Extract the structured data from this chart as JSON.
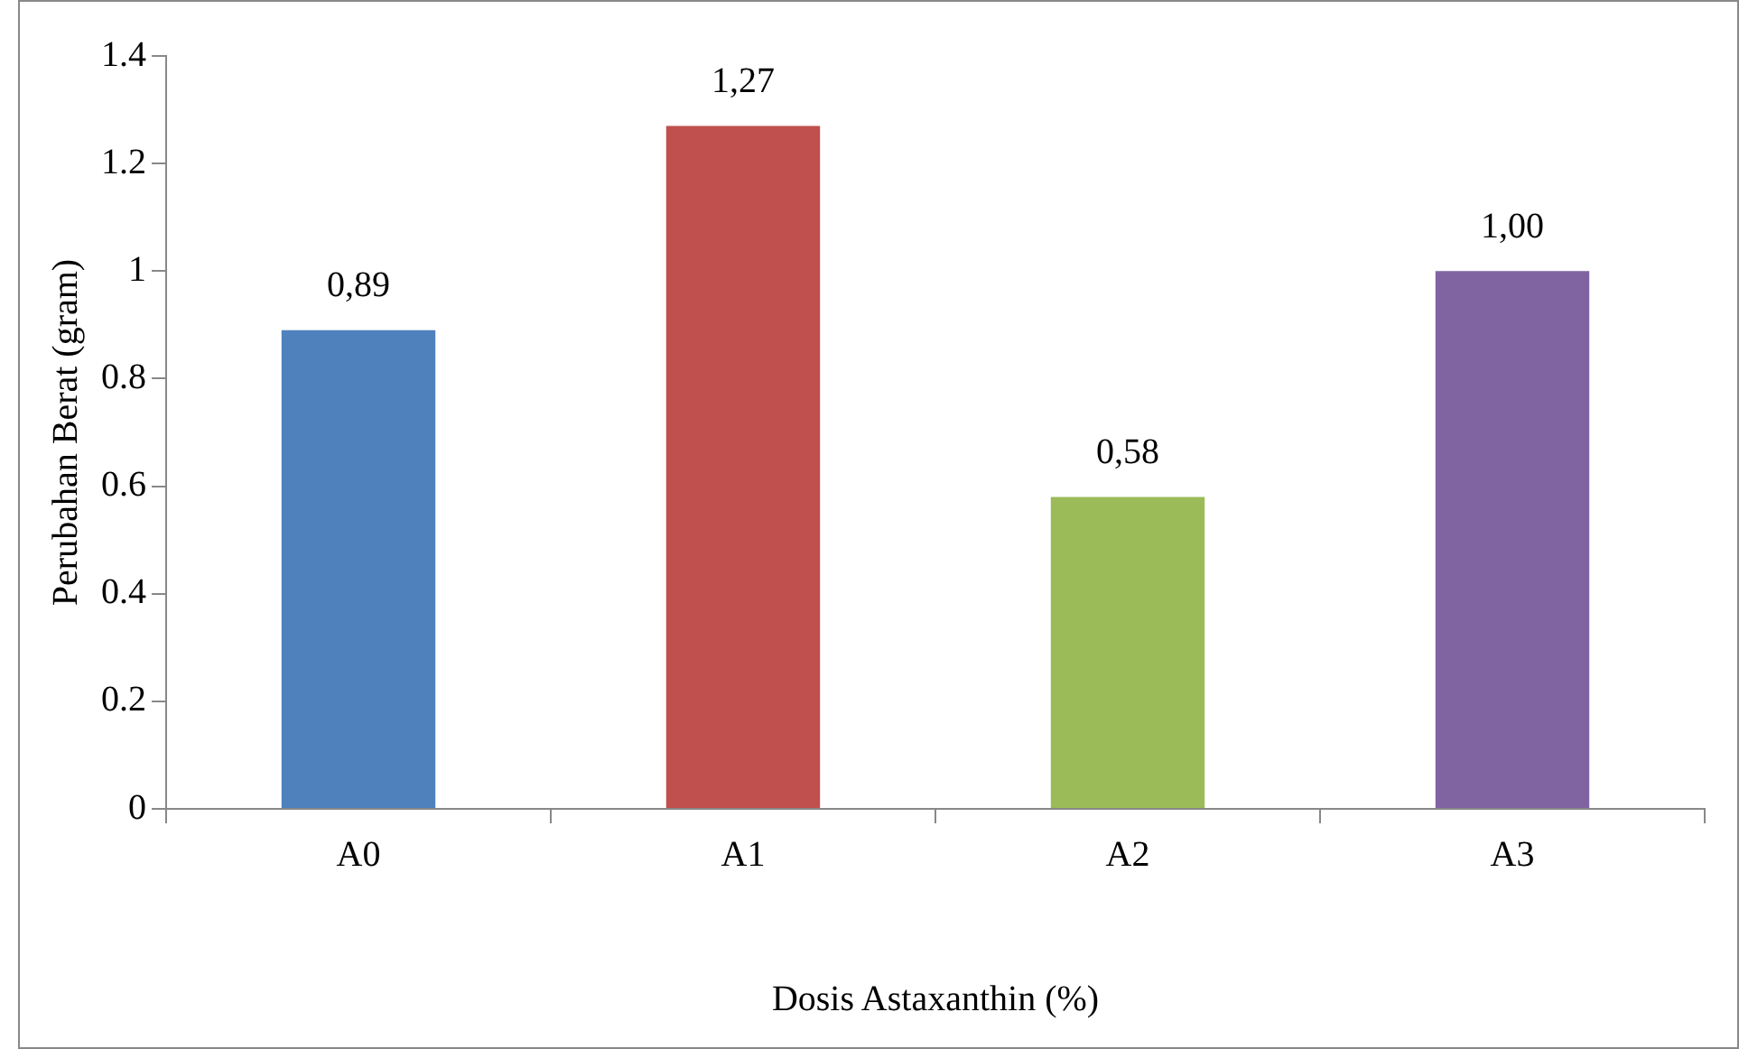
{
  "chart_data": {
    "type": "bar",
    "xlabel": "Dosis Astaxanthin (%)",
    "ylabel": "Perubahan Berat (gram)",
    "categories": [
      "A0",
      "A1",
      "A2",
      "A3"
    ],
    "values": [
      0.89,
      1.27,
      0.58,
      1.0
    ],
    "colors": [
      "#4f81bd",
      "#c0504d",
      "#9bbb59",
      "#8064a2"
    ],
    "value_labels": [
      "0,89",
      "1,27",
      "0,58",
      "1,00"
    ],
    "ylim": [
      0,
      1.4
    ],
    "yticks": [
      0,
      0.2,
      0.4,
      0.6,
      0.8,
      1,
      1.2,
      1.4
    ],
    "grid": false,
    "legend": false
  }
}
